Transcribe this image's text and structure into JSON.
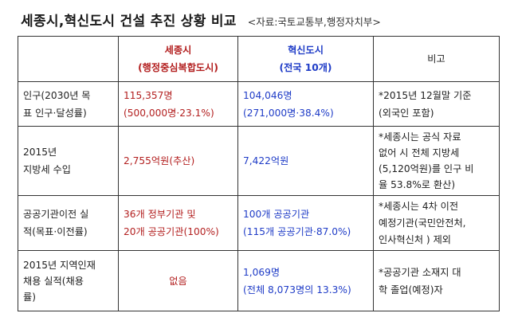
{
  "title": "세종시,혁신도시 건설 추진 상황 비교",
  "source": "<자료:국토교통부,행정자치부>",
  "header": {
    "col1": "",
    "col2_line1": "세종시",
    "col2_line2": "(행정중심복합도시)",
    "col3_line1": "혁신도시",
    "col3_line2": "(전국 10개)",
    "col4": "비고"
  },
  "rows": [
    {
      "label": [
        "인구(2030년 목",
        "표 인구·달성률)"
      ],
      "sejong": [
        "115,357명",
        "(500,000명·23.1%)"
      ],
      "innovation": [
        "104,046명",
        "(271,000명·38.4%)"
      ],
      "note": [
        "*2015년 12월말 기준",
        "(외국인 포함)"
      ]
    },
    {
      "label": [
        "2015년",
        "지방세 수입"
      ],
      "sejong": [
        "2,755억원(추산)"
      ],
      "innovation": [
        "7,422억원"
      ],
      "note": [
        "*세종시는 공식 자료",
        "없어 시 전체 지방세",
        "(5,120억원)를 인구 비",
        "율 53.8%로 환산)"
      ]
    },
    {
      "label": [
        "공공기관이전 실",
        "적(목표·이전률)"
      ],
      "sejong": [
        "36개 정부기관 및",
        "20개 공공기관(100%)"
      ],
      "innovation": [
        "100개 공공기관",
        "(115개 공공기관·87.0%)"
      ],
      "note": [
        "*세종시는 4차 이전",
        "예정기관(국민안전처,",
        "인사혁신처 ) 제외"
      ]
    },
    {
      "label": [
        "2015년 지역인재",
        "채용 실적(채용",
        "률)"
      ],
      "sejong": [
        "없음"
      ],
      "innovation": [
        "1,069명",
        "(전체 8,073명의 13.3%)"
      ],
      "note": [
        "*공공기관 소재지 대",
        "학 졸업(예정)자"
      ]
    }
  ]
}
